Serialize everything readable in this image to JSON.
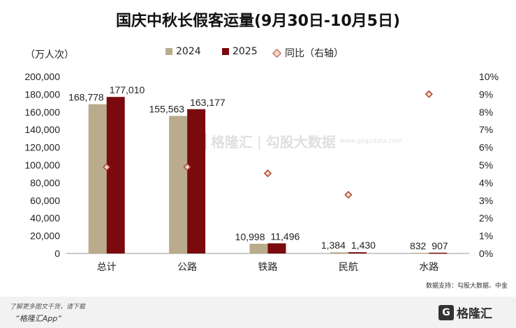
{
  "header": {
    "title": "国庆中秋长假客运量(9月30日-10月5日)"
  },
  "legend": {
    "s2024": "2024",
    "s2025": "2025",
    "yoy": "同比（右轴）"
  },
  "colors": {
    "s2024": "#b9ab8b",
    "s2025": "#7b0a0e",
    "yoy_marker": "#b04a3c",
    "yoy_fill": "#f6d9c4"
  },
  "footer": {
    "source": "数据支持：勾股大数据、中金",
    "note": "了解更多图文干货，请下载",
    "app": "“格隆汇App”",
    "logo_text": "格隆汇"
  },
  "watermark": {
    "name1": "格隆汇",
    "name2": "勾股大数据",
    "url": "www.gogudata.com"
  },
  "chart_data": {
    "type": "bar",
    "categories": [
      "总计",
      "公路",
      "铁路",
      "民航",
      "水路"
    ],
    "series": [
      {
        "name": "2024",
        "values": [
          168778,
          155563,
          10998,
          1384,
          832
        ],
        "labels": [
          "168,778",
          "155,563",
          "10,998",
          "1,384",
          "832"
        ]
      },
      {
        "name": "2025",
        "values": [
          177010,
          163177,
          11496,
          1430,
          907
        ],
        "labels": [
          "177,010",
          "163,177",
          "11,496",
          "1,430",
          "907"
        ]
      },
      {
        "name": "同比（右轴）",
        "axis": "right",
        "type": "scatter",
        "values": [
          4.88,
          4.89,
          4.53,
          3.32,
          9.01
        ]
      }
    ],
    "ylabel": "（万人次）",
    "ylim": [
      0,
      200000
    ],
    "yticks": [
      "0",
      "20,000",
      "40,000",
      "60,000",
      "80,000",
      "100,000",
      "120,000",
      "140,000",
      "160,000",
      "180,000",
      "200,000"
    ],
    "y2lim": [
      0,
      10
    ],
    "y2ticks": [
      "0%",
      "1%",
      "2%",
      "3%",
      "4%",
      "5%",
      "6%",
      "7%",
      "8%",
      "9%",
      "10%"
    ],
    "legend_position": "top-center",
    "grid": false
  }
}
